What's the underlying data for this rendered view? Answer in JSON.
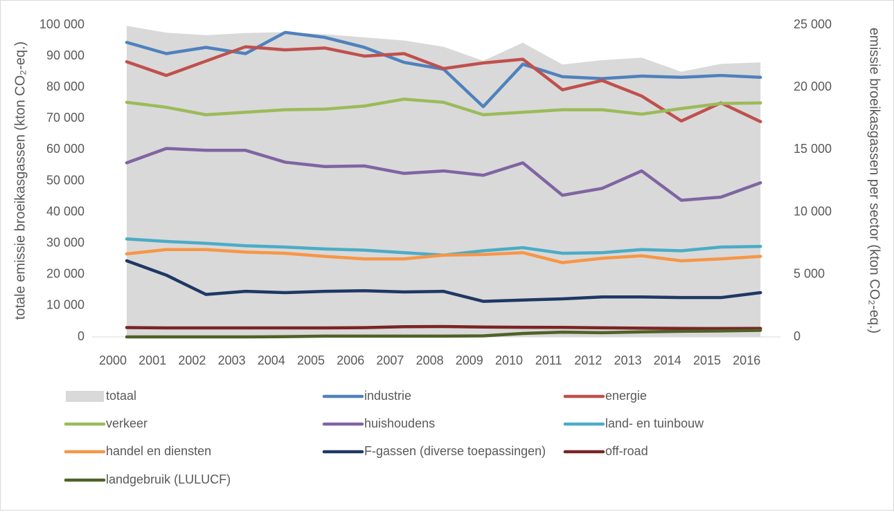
{
  "chart_data": {
    "type": "line",
    "y_label": "totale emissie broeikasgassen (kton CO₂-eq.)",
    "y2_label": "emissie broeikasgassen per sector (kton CO₂-eq.)",
    "categories": [
      "2000",
      "2001",
      "2002",
      "2003",
      "2004",
      "2005",
      "2006",
      "2007",
      "2008",
      "2009",
      "2010",
      "2011",
      "2012",
      "2013",
      "2014",
      "2015",
      "2016"
    ],
    "ylim": [
      0,
      100000
    ],
    "yticks": [
      0,
      {
        "value": 10000,
        "label": "10 000"
      },
      {
        "value": 20000,
        "label": "20 000"
      },
      {
        "value": 30000,
        "label": "30 000"
      },
      {
        "value": 40000,
        "label": "40 000"
      },
      {
        "value": 50000,
        "label": "50 000"
      },
      {
        "value": 60000,
        "label": "60 000"
      },
      {
        "value": 70000,
        "label": "70 000"
      },
      {
        "value": 80000,
        "label": "80 000"
      },
      {
        "value": 90000,
        "label": "90 000"
      },
      {
        "value": 100000,
        "label": "100 000"
      }
    ],
    "y2lim": [
      0,
      25000
    ],
    "y2ticks": [
      0,
      {
        "value": 5000,
        "label": "5 000"
      },
      {
        "value": 10000,
        "label": "10 000"
      },
      {
        "value": 15000,
        "label": "15 000"
      },
      {
        "value": 20000,
        "label": "20 000"
      },
      {
        "value": 25000,
        "label": "25 000"
      }
    ],
    "series": [
      {
        "name": "totaal",
        "type": "area",
        "color": "#d9d9d9",
        "values": [
          99700,
          97500,
          96700,
          97400,
          97700,
          97000,
          96000,
          95000,
          93000,
          88500,
          94300,
          87300,
          88700,
          89500,
          85000,
          87500,
          88000
        ]
      },
      {
        "name": "industrie",
        "axis": "y2",
        "color": "#4f81bd",
        "values": [
          23600,
          22700,
          23200,
          22700,
          24400,
          24000,
          23200,
          22000,
          21450,
          18450,
          21850,
          20850,
          20700,
          20900,
          20800,
          20950,
          20800
        ]
      },
      {
        "name": "energie",
        "axis": "y2",
        "color": "#c0504d",
        "values": [
          22050,
          20950,
          22100,
          23250,
          23000,
          23150,
          22500,
          22700,
          21500,
          21950,
          22250,
          19800,
          20550,
          19300,
          17300,
          18750,
          17250
        ]
      },
      {
        "name": "verkeer",
        "axis": "y2",
        "color": "#9bbb59",
        "values": [
          18800,
          18400,
          17800,
          18000,
          18200,
          18250,
          18500,
          19050,
          18800,
          17800,
          18000,
          18200,
          18200,
          17850,
          18300,
          18700,
          18750
        ]
      },
      {
        "name": "huishoudens",
        "axis": "y2",
        "color": "#8064a2",
        "values": [
          13950,
          15100,
          14950,
          14950,
          14000,
          13650,
          13700,
          13100,
          13300,
          12950,
          13950,
          11350,
          11900,
          13300,
          10950,
          11200,
          12350
        ]
      },
      {
        "name": "land- en tuinbouw",
        "axis": "y2",
        "color": "#4bacc6",
        "values": [
          7850,
          7650,
          7500,
          7300,
          7200,
          7050,
          6950,
          6750,
          6550,
          6900,
          7150,
          6700,
          6750,
          7000,
          6900,
          7200,
          7250
        ]
      },
      {
        "name": "handel en diensten",
        "axis": "y2",
        "color": "#f79646",
        "values": [
          6650,
          7000,
          7000,
          6800,
          6700,
          6450,
          6250,
          6250,
          6550,
          6600,
          6750,
          5950,
          6300,
          6500,
          6100,
          6250,
          6450
        ]
      },
      {
        "name": "F-gassen (diverse toepassingen)",
        "axis": "y2",
        "color": "#1f3864",
        "values": [
          6100,
          4950,
          3400,
          3650,
          3550,
          3650,
          3700,
          3600,
          3650,
          2850,
          2950,
          3050,
          3200,
          3200,
          3150,
          3150,
          3550
        ]
      },
      {
        "name": "off-road",
        "axis": "y2",
        "color": "#7b2424",
        "values": [
          750,
          720,
          720,
          720,
          720,
          720,
          740,
          820,
          830,
          790,
          770,
          760,
          730,
          700,
          680,
          670,
          680
        ]
      },
      {
        "name": "landgebruik (LULUCF)",
        "axis": "y2",
        "color": "#4f6228",
        "values": [
          0,
          0,
          0,
          0,
          20,
          60,
          60,
          60,
          60,
          80,
          280,
          380,
          340,
          400,
          450,
          480,
          530
        ]
      }
    ]
  }
}
